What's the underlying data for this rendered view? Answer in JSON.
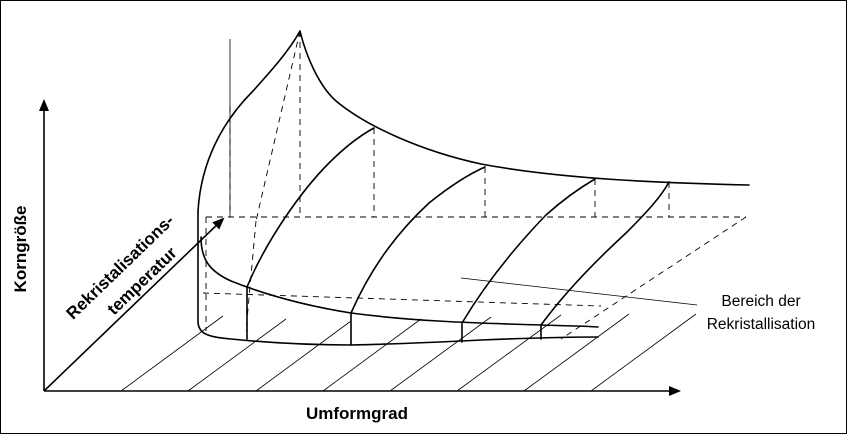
{
  "axes": {
    "x_label": "Umformgrad",
    "y_label": "Korngröße",
    "z_label_line1": "Rekristalisations-",
    "z_label_line2": "temperatur"
  },
  "annotation": {
    "line1": "Bereich der",
    "line2": "Rekristallisation"
  }
}
